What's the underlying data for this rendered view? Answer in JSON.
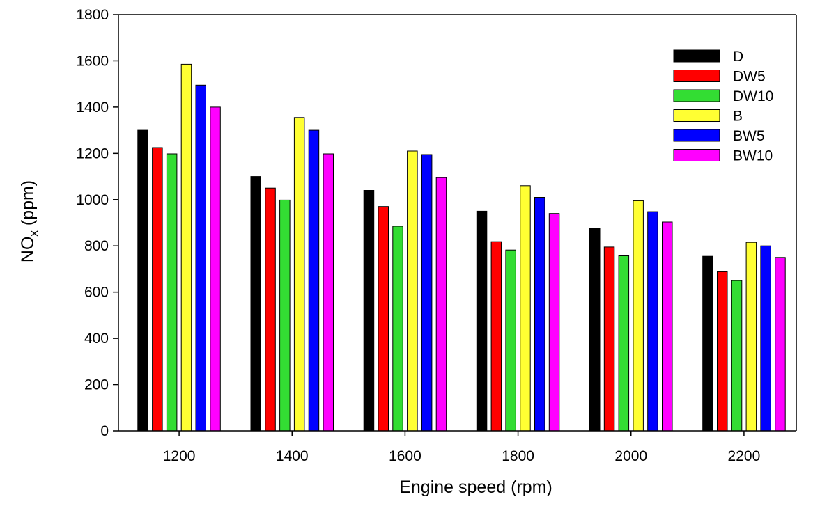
{
  "chart_data": {
    "type": "bar",
    "title": "",
    "xlabel": "Engine speed (rpm)",
    "ylabel_main": "NO",
    "ylabel_sub": "x",
    "ylabel_unit": " (ppm)",
    "ylim": [
      0,
      1800
    ],
    "yticks": [
      "0",
      "200",
      "400",
      "600",
      "800",
      "1000",
      "1200",
      "1400",
      "1600",
      "1800"
    ],
    "categories": [
      "1200",
      "1400",
      "1600",
      "1800",
      "2000",
      "2200"
    ],
    "legend_position": "top-right",
    "grid": false,
    "series": [
      {
        "name": "D",
        "color": "#000000",
        "values": [
          1300,
          1100,
          1040,
          950,
          875,
          755
        ]
      },
      {
        "name": "DW5",
        "color": "#ff0000",
        "values": [
          1225,
          1050,
          970,
          818,
          795,
          688
        ]
      },
      {
        "name": "DW10",
        "color": "#33dd33",
        "values": [
          1198,
          998,
          885,
          782,
          757,
          650
        ]
      },
      {
        "name": "B",
        "color": "#ffff33",
        "values": [
          1585,
          1355,
          1210,
          1060,
          995,
          815
        ]
      },
      {
        "name": "BW5",
        "color": "#0000ff",
        "values": [
          1495,
          1300,
          1195,
          1010,
          948,
          800
        ]
      },
      {
        "name": "BW10",
        "color": "#ff00ff",
        "values": [
          1400,
          1198,
          1095,
          940,
          903,
          750
        ]
      }
    ]
  }
}
